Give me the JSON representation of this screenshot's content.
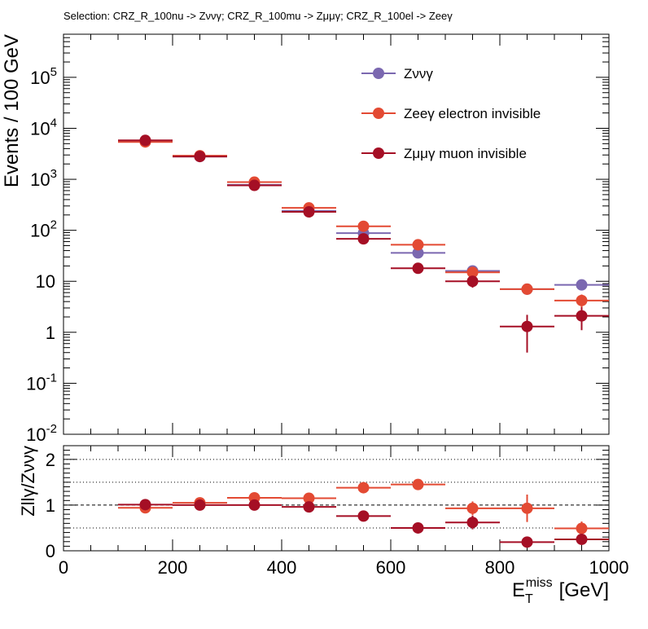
{
  "selection_title": "Selection: CRZ_R_100nu -> Zννγ; CRZ_R_100mu -> Zμμγ; CRZ_R_100el -> Zeeγ",
  "chart_data": [
    {
      "type": "scatter",
      "title": "Selection: CRZ_R_100nu -> Zννγ; CRZ_R_100mu -> Zμμγ; CRZ_R_100el -> Zeeγ",
      "ylabel": "Events / 100 GeV",
      "yscale": "log",
      "ylim": [
        0.01,
        700000
      ],
      "xlim": [
        0,
        1000
      ],
      "y_tick_labels": [
        "10^-2",
        "10^-1",
        "1",
        "10",
        "10^2",
        "10^3",
        "10^4",
        "10^5"
      ],
      "legend_placement": "top-center",
      "x_bins": [
        [
          100,
          200
        ],
        [
          200,
          300
        ],
        [
          300,
          400
        ],
        [
          400,
          500
        ],
        [
          500,
          600
        ],
        [
          600,
          700
        ],
        [
          700,
          800
        ],
        [
          800,
          900
        ],
        [
          900,
          1000
        ]
      ],
      "x": [
        150,
        250,
        350,
        450,
        550,
        650,
        750,
        850,
        950
      ],
      "series": [
        {
          "name": "Zννγ",
          "color": "#7b68b0",
          "values": [
            5700,
            2800,
            780,
            240,
            88,
            36,
            16,
            7,
            8.5
          ],
          "err_low": [
            0,
            0,
            0,
            0,
            0,
            0,
            0,
            0,
            0
          ],
          "err_high": [
            0,
            0,
            0,
            0,
            0,
            0,
            0,
            0,
            0
          ]
        },
        {
          "name": "Zeeγ electron invisible",
          "color": "#e34a33",
          "values": [
            5400,
            2900,
            880,
            275,
            120,
            52,
            15,
            7,
            4.2
          ],
          "err_low": [
            0,
            0,
            0,
            0,
            0,
            0,
            0,
            1.5,
            1.3
          ],
          "err_high": [
            0,
            0,
            0,
            0,
            0,
            0,
            0,
            1.5,
            1.3
          ]
        },
        {
          "name": "Zμμγ muon invisible",
          "color": "#a50f25",
          "values": [
            5800,
            2800,
            760,
            230,
            68,
            18,
            10,
            1.3,
            2.1
          ],
          "err_low": [
            0,
            0,
            0,
            0,
            0,
            0,
            2.5,
            0.9,
            1.0
          ],
          "err_high": [
            0,
            0,
            0,
            0,
            0,
            0,
            2.5,
            0.9,
            1.0
          ]
        }
      ]
    },
    {
      "type": "scatter",
      "xlabel": "E_T^miss [GeV]",
      "ylabel": "Zllγ/Zννγ",
      "ylim": [
        0,
        2.3
      ],
      "xlim": [
        0,
        1000
      ],
      "y_ticks": [
        0,
        1,
        2
      ],
      "x_ticks": [
        0,
        200,
        400,
        600,
        800,
        1000
      ],
      "reference_lines": [
        0.5,
        1,
        1.5,
        2
      ],
      "x": [
        150,
        250,
        350,
        450,
        550,
        650,
        750,
        850,
        950
      ],
      "series": [
        {
          "name": "Zeeγ electron invisible",
          "color": "#e34a33",
          "values": [
            0.94,
            1.05,
            1.16,
            1.15,
            1.38,
            1.45,
            0.93,
            0.93,
            0.49
          ],
          "err_low": [
            0,
            0,
            0,
            0,
            0.05,
            0.1,
            0.15,
            0.3,
            0.15
          ],
          "err_high": [
            0,
            0,
            0,
            0,
            0.05,
            0.1,
            0.15,
            0.3,
            0.15
          ]
        },
        {
          "name": "Zμμγ muon invisible",
          "color": "#a50f25",
          "values": [
            1.01,
            1.0,
            1.0,
            0.96,
            0.76,
            0.5,
            0.62,
            0.19,
            0.25
          ],
          "err_low": [
            0,
            0,
            0,
            0,
            0,
            0,
            0.15,
            0.12,
            0.1
          ],
          "err_high": [
            0,
            0,
            0,
            0,
            0,
            0,
            0.15,
            0.12,
            0.1
          ]
        }
      ]
    }
  ]
}
